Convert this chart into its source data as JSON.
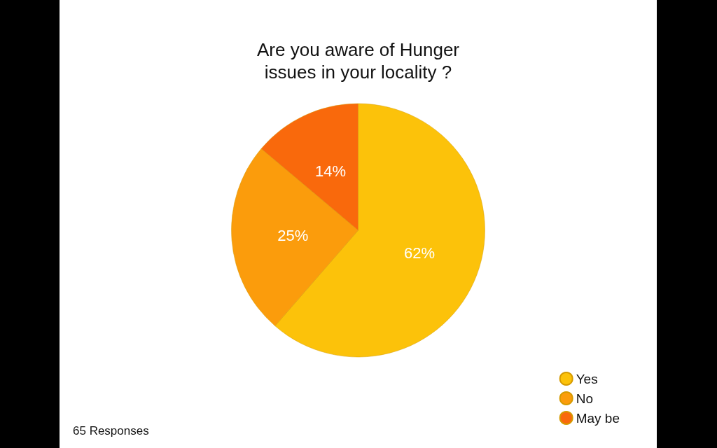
{
  "chart_data": {
    "type": "pie",
    "title": "Are you aware of Hunger\nissues in your locality ?",
    "categories": [
      "Yes",
      "No",
      "May be"
    ],
    "values": [
      62,
      25,
      14
    ],
    "colors": [
      "#fcc20a",
      "#fb9c0c",
      "#f9690c"
    ],
    "value_labels": [
      "62%",
      "25%",
      "14%"
    ],
    "legend": "bottom right",
    "annotations": [
      "65 Responses"
    ]
  }
}
